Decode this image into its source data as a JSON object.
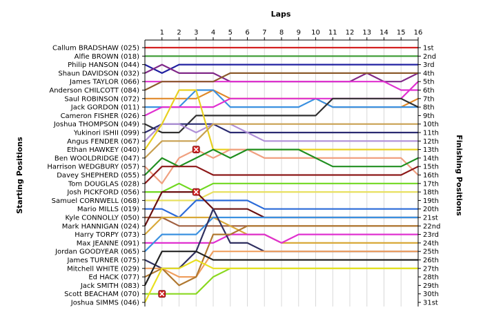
{
  "chart_data": {
    "type": "line",
    "title": "Laps",
    "ylabel_left": "Starting Positions",
    "ylabel_right": "Finishing Positions",
    "x": [
      1,
      2,
      3,
      4,
      5,
      6,
      7,
      8,
      9,
      10,
      11,
      12,
      13,
      14,
      15,
      16
    ],
    "starting_grid": [
      "Callum BRADSHAW (025)",
      "Alfie BROWN (018)",
      "Philip HANSON (044)",
      "Shaun DAVIDSON (032)",
      "James TAYLOR (066)",
      "Anderson CHILCOTT (084)",
      "Saul ROBINSON (072)",
      "Jack GORDON (011)",
      "Cameron FISHER (026)",
      "Joshua THOMPSON (049)",
      "Yukinori ISHII (099)",
      "Angus FENDER (067)",
      "Ethan HAWKEY (040)",
      "Ben WOOLDRIDGE (047)",
      "Harrison WEDGBURY (057)",
      "Davey SHEPHERD (055)",
      "Tom DOUGLAS (028)",
      "Josh PICKFORD (056)",
      "Samuel CORNWELL (068)",
      "Mario MILLS (019)",
      "Kyle CONNOLLY (050)",
      "Mark HANNIGAN (024)",
      "Harry TORPY (073)",
      "Max JEANNE (091)",
      "Jordan GOODYEAR (065)",
      "James TURNER (075)",
      "Mitchell WHITE (029)",
      "Ed HACK (077)",
      "Jack SMITH (083)",
      "Scott BEACHAM (070)",
      "Joshua SIMMS (046)"
    ],
    "finishing_labels": [
      "1st",
      "2nd",
      "3rd",
      "4th",
      "5th",
      "6th",
      "7th",
      "8th",
      "9th",
      "10th",
      "11th",
      "12th",
      "13th",
      "14th",
      "15th",
      "16th",
      "17th",
      "18th",
      "19th",
      "20th",
      "21st",
      "22nd",
      "23rd",
      "24th",
      "25th",
      "26th",
      "27th",
      "28th",
      "29th",
      "30th",
      "31st"
    ],
    "series": [
      {
        "color": "#d42020",
        "positions": [
          1,
          1,
          1,
          1,
          1,
          1,
          1,
          1,
          1,
          1,
          1,
          1,
          1,
          1,
          1,
          1,
          1
        ]
      },
      {
        "color": "#3a9a30",
        "positions": [
          2,
          2,
          2,
          2,
          2,
          2,
          2,
          2,
          2,
          2,
          2,
          2,
          2,
          2,
          2,
          2,
          2
        ]
      },
      {
        "color": "#2020a0",
        "positions": [
          3,
          4,
          3,
          3,
          3,
          3,
          3,
          3,
          3,
          3,
          3,
          3,
          3,
          3,
          3,
          3,
          3
        ]
      },
      {
        "color": "#802888",
        "positions": [
          4,
          3,
          4,
          4,
          4,
          5,
          5,
          5,
          5,
          5,
          5,
          5,
          5,
          4,
          5,
          5,
          4
        ]
      },
      {
        "color": "#e030d0",
        "positions": [
          5,
          5,
          5,
          5,
          5,
          5,
          5,
          5,
          5,
          5,
          5,
          5,
          5,
          5,
          5,
          6,
          6
        ]
      },
      {
        "color": "#8b5a2b",
        "positions": [
          6,
          5,
          5,
          5,
          5,
          4,
          4,
          4,
          4,
          4,
          4,
          4,
          4,
          4,
          4,
          4,
          4
        ]
      },
      {
        "color": "#e08828",
        "positions": [
          7,
          7,
          7,
          7,
          6,
          7,
          7,
          7,
          7,
          7,
          7,
          8,
          8,
          8,
          8,
          8,
          7
        ]
      },
      {
        "color": "#3a90e0",
        "positions": [
          8,
          8,
          8,
          6,
          6,
          8,
          8,
          8,
          8,
          8,
          7,
          8,
          8,
          8,
          8,
          8,
          8
        ]
      },
      {
        "color": "#e030d0",
        "positions": [
          9,
          8,
          8,
          8,
          8,
          7,
          7,
          7,
          7,
          7,
          7,
          7,
          7,
          7,
          7,
          7,
          5
        ]
      },
      {
        "color": "#303030",
        "positions": [
          10,
          11,
          11,
          9,
          9,
          9,
          9,
          9,
          9,
          9,
          9,
          7,
          7,
          7,
          7,
          7,
          8
        ]
      },
      {
        "color": "#2a2a70",
        "positions": [
          11,
          10,
          10,
          10,
          10,
          11,
          11,
          11,
          11,
          11,
          11,
          11,
          11,
          11,
          11,
          11,
          11
        ]
      },
      {
        "color": "#b090d8",
        "positions": [
          12,
          10,
          10,
          11,
          10,
          10,
          11,
          12,
          12,
          12,
          12,
          12,
          12,
          12,
          12,
          12,
          12
        ]
      },
      {
        "color": "#e8d020",
        "positions": [
          13,
          10,
          6,
          6,
          13,
          13,
          13,
          13,
          13,
          13,
          13,
          13,
          13,
          13,
          13,
          13,
          13
        ]
      },
      {
        "color": "#c8a050",
        "positions": [
          14,
          12,
          12,
          12,
          10,
          10,
          10,
          10,
          10,
          10,
          10,
          10,
          10,
          10,
          10,
          10,
          10
        ]
      },
      {
        "color": "#f0a080",
        "positions": [
          15,
          17,
          14,
          13,
          14,
          13,
          13,
          14,
          14,
          14,
          14,
          14,
          14,
          14,
          14,
          14,
          16
        ]
      },
      {
        "color": "#208f20",
        "positions": [
          16,
          14,
          15,
          14,
          13,
          14,
          13,
          13,
          13,
          13,
          14,
          15,
          15,
          15,
          15,
          15,
          14
        ]
      },
      {
        "color": "#8c1818",
        "positions": [
          17,
          15,
          15,
          15,
          16,
          16,
          16,
          16,
          16,
          16,
          16,
          16,
          16,
          16,
          16,
          16,
          15
        ]
      },
      {
        "color": "#70d820",
        "positions": [
          18,
          18,
          17,
          18,
          17,
          17,
          17,
          17,
          17,
          17,
          17,
          17,
          17,
          17,
          17,
          17,
          17
        ]
      },
      {
        "color": "#e8e060",
        "positions": [
          19,
          19,
          19,
          19,
          18,
          18,
          18,
          18,
          18,
          18,
          18,
          18,
          18,
          18,
          18,
          18,
          18
        ]
      },
      {
        "color": "#2a6ad8",
        "positions": [
          20,
          20,
          21,
          19,
          19,
          19,
          19,
          20,
          20,
          20,
          20,
          20,
          20,
          20,
          20,
          20,
          20
        ]
      },
      {
        "color": "#a06040",
        "positions": [
          21,
          21,
          22,
          22,
          22,
          22,
          22,
          22,
          22,
          22,
          22,
          22,
          22,
          22,
          22,
          22,
          22
        ]
      },
      {
        "color": "#6a1010",
        "positions": [
          22,
          18,
          18,
          18,
          20,
          20,
          20,
          21,
          21,
          21,
          21,
          21,
          21,
          21,
          21,
          21,
          21
        ]
      },
      {
        "color": "#d8a838",
        "positions": [
          23,
          21,
          21,
          21,
          21,
          22,
          23,
          23,
          24,
          24,
          24,
          24,
          24,
          24,
          24,
          24,
          24
        ]
      },
      {
        "color": "#e030d0",
        "positions": [
          24,
          24,
          24,
          24,
          24,
          23,
          23,
          23,
          24,
          23,
          23,
          23,
          23,
          23,
          23,
          23,
          23
        ]
      },
      {
        "color": "#3a90e0",
        "positions": [
          25,
          23,
          23,
          23,
          21,
          21,
          21,
          21,
          21,
          21,
          21,
          21,
          21,
          21,
          21,
          21,
          21
        ]
      },
      {
        "color": "#303060",
        "positions": [
          26,
          27,
          27,
          25,
          20,
          24,
          24,
          25,
          25,
          25,
          25,
          25,
          25,
          25,
          25,
          25,
          25
        ]
      },
      {
        "color": "#f0a060",
        "positions": [
          27,
          27,
          28,
          28,
          25,
          25,
          25,
          25,
          25,
          25,
          25,
          25,
          25,
          25,
          25,
          25,
          25
        ]
      },
      {
        "color": "#b07830",
        "positions": [
          28,
          27,
          29,
          28,
          23,
          23,
          22,
          22,
          22,
          22,
          22,
          22,
          22,
          22,
          22,
          22,
          22
        ]
      },
      {
        "color": "#222222",
        "positions": [
          29,
          25,
          25,
          25,
          26,
          26,
          26,
          26,
          26,
          26,
          26,
          26,
          26,
          26,
          26,
          26,
          26
        ]
      },
      {
        "color": "#8ad820",
        "positions": [
          30,
          30,
          30,
          30,
          28,
          27,
          27,
          27,
          27,
          27,
          27,
          27,
          27,
          27,
          27,
          27,
          27
        ]
      },
      {
        "color": "#e8e020",
        "positions": [
          31,
          27,
          27,
          26,
          27,
          27,
          27,
          27,
          27,
          27,
          27,
          27,
          27,
          27,
          27,
          27,
          27
        ]
      }
    ],
    "retirements": [
      {
        "driver": "Ethan HAWKEY (040)",
        "lap": 3,
        "position": 13
      },
      {
        "driver": "Josh PICKFORD (056)",
        "lap": 3,
        "position": 18
      },
      {
        "driver": "Scott BEACHAM (070)",
        "lap": 1,
        "position": 30
      }
    ],
    "grid": true
  }
}
